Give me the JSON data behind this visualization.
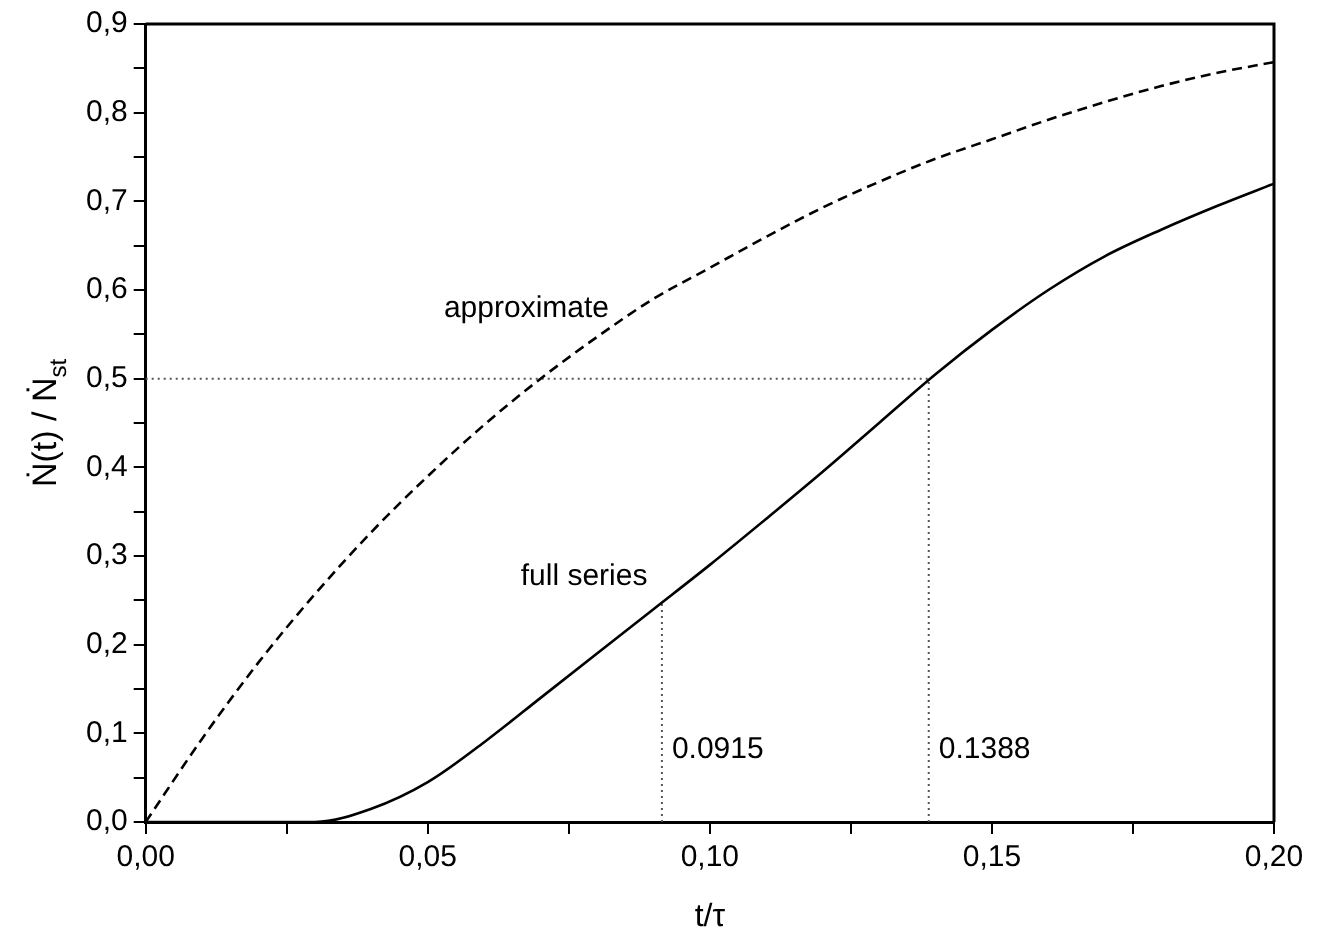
{
  "chart_data": {
    "type": "line",
    "xlabel": "t/τ",
    "ylabel": "Ṅ(t) / Ṅ$_{st}$",
    "x": [
      0,
      0.01,
      0.02,
      0.03,
      0.04,
      0.05,
      0.06,
      0.07,
      0.08,
      0.09,
      0.1,
      0.11,
      0.12,
      0.13,
      0.14,
      0.15,
      0.16,
      0.17,
      0.18,
      0.19,
      0.2
    ],
    "series": [
      {
        "name": "approximate",
        "color": "#000000",
        "line_style": "dashed",
        "values": [
          0,
          0.094,
          0.18,
          0.257,
          0.327,
          0.39,
          0.448,
          0.5,
          0.547,
          0.59,
          0.625,
          0.66,
          0.693,
          0.722,
          0.748,
          0.77,
          0.792,
          0.812,
          0.83,
          0.845,
          0.857
        ]
      },
      {
        "name": "full series",
        "color": "#000000",
        "line_style": "solid",
        "values": [
          0,
          0,
          0,
          0,
          0.015,
          0.045,
          0.09,
          0.14,
          0.19,
          0.24,
          0.29,
          0.342,
          0.395,
          0.45,
          0.505,
          0.555,
          0.6,
          0.638,
          0.668,
          0.695,
          0.72
        ]
      }
    ],
    "xlim": [
      0,
      0.2
    ],
    "ylim": [
      0,
      0.9
    ],
    "xticks": [
      {
        "value": 0,
        "label": "0,00"
      },
      {
        "value": 0.025,
        "label": null
      },
      {
        "value": 0.05,
        "label": "0,05"
      },
      {
        "value": 0.075,
        "label": null
      },
      {
        "value": 0.1,
        "label": "0,10"
      },
      {
        "value": 0.125,
        "label": null
      },
      {
        "value": 0.15,
        "label": "0,15"
      },
      {
        "value": 0.175,
        "label": null
      },
      {
        "value": 0.2,
        "label": "0,20"
      }
    ],
    "yticks": [
      {
        "value": 0,
        "label": "0,0"
      },
      {
        "value": 0.05,
        "label": null
      },
      {
        "value": 0.1,
        "label": "0,1"
      },
      {
        "value": 0.15,
        "label": null
      },
      {
        "value": 0.2,
        "label": "0,2"
      },
      {
        "value": 0.25,
        "label": null
      },
      {
        "value": 0.3,
        "label": "0,3"
      },
      {
        "value": 0.35,
        "label": null
      },
      {
        "value": 0.4,
        "label": "0,4"
      },
      {
        "value": 0.45,
        "label": null
      },
      {
        "value": 0.5,
        "label": "0,5"
      },
      {
        "value": 0.55,
        "label": null
      },
      {
        "value": 0.6,
        "label": "0,6"
      },
      {
        "value": 0.65,
        "label": null
      },
      {
        "value": 0.7,
        "label": "0,7"
      },
      {
        "value": 0.75,
        "label": null
      },
      {
        "value": 0.8,
        "label": "0,8"
      },
      {
        "value": 0.85,
        "label": null
      },
      {
        "value": 0.9,
        "label": "0,9"
      }
    ],
    "ref_lines": [
      {
        "axis": "y",
        "value": 0.5,
        "label": null,
        "color": "#555555",
        "line_style": "dotted"
      },
      {
        "axis": "x",
        "value": 0.0915,
        "label": "0.0915",
        "color": "#555555",
        "line_style": "dotted"
      },
      {
        "axis": "x",
        "value": 0.1388,
        "label": "0.1388",
        "color": "#555555",
        "line_style": "dotted"
      }
    ],
    "grid": false,
    "legend": false,
    "marker": "none"
  }
}
